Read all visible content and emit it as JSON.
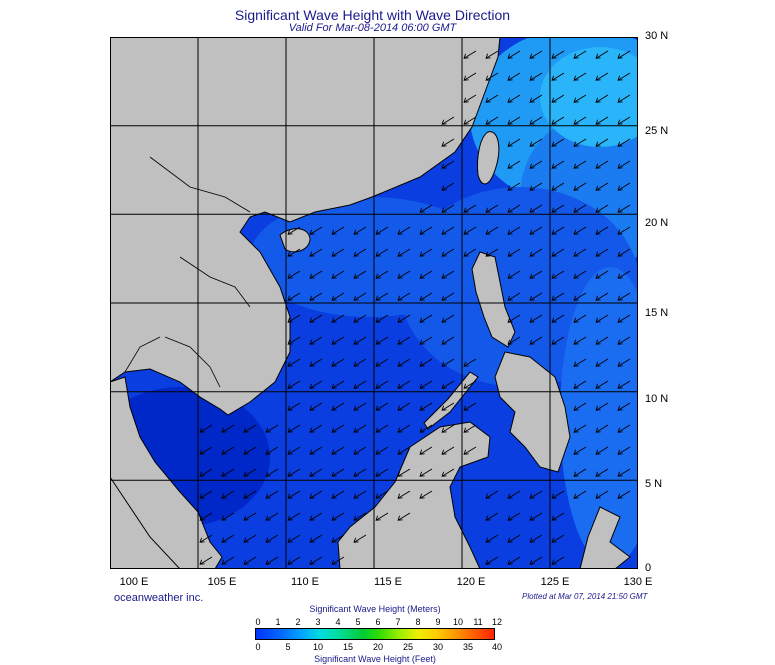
{
  "title": "Significant Wave Height with Wave Direction",
  "subtitle": "Valid For Mar-08-2014 06:00 GMT",
  "map": {
    "lon_labels": [
      "100 E",
      "105 E",
      "110 E",
      "115 E",
      "120 E",
      "125 E",
      "130 E"
    ],
    "lat_labels": [
      "30 N",
      "25 N",
      "20 N",
      "15 N",
      "10 N",
      "5 N",
      "0"
    ],
    "land_color": "#c0c0c0",
    "sea_color": "#0a3ee0",
    "wave_direction": "from northeast"
  },
  "credit": "oceanweather inc.",
  "plotted": "Plotted at Mar 07, 2014 21:50 GMT",
  "colorbar": {
    "title_meters": "Significant Wave Height (Meters)",
    "title_feet": "Significant Wave Height (Feet)",
    "meter_ticks": [
      "0",
      "1",
      "2",
      "3",
      "4",
      "5",
      "6",
      "7",
      "8",
      "9",
      "10",
      "11",
      "12"
    ],
    "feet_ticks": [
      "0",
      "5",
      "10",
      "15",
      "20",
      "25",
      "30",
      "35",
      "40"
    ]
  }
}
